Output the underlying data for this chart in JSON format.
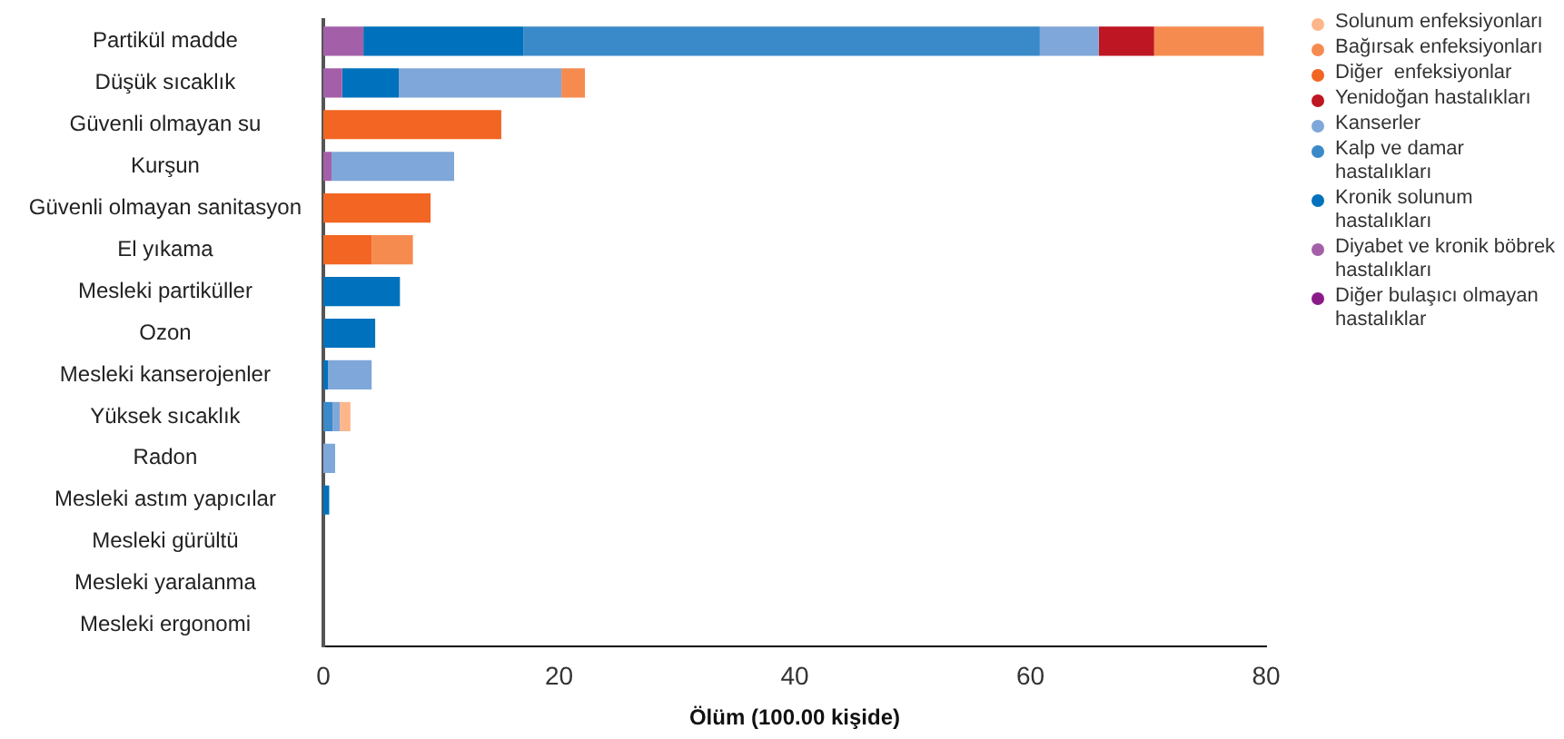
{
  "chart_data": {
    "type": "bar",
    "orientation": "horizontal",
    "stacked": true,
    "xlabel": "Ölüm (100.00 kişide)",
    "legend": "right",
    "categories": [
      "Partikül madde",
      "Düşük sıcaklık",
      "Güvenli olmayan su",
      "Kurşun",
      "Güvenli olmayan sanitasyon",
      "El yıkama",
      "Mesleki partiküller",
      "Ozon",
      "Mesleki kanserojenler",
      "Yüksek sıcaklık",
      "Radon",
      "Mesleki astım yapıcılar",
      "Mesleki gürültü",
      "Mesleki yaralanma",
      "Mesleki ergonomi"
    ],
    "xlim": [
      0,
      80
    ],
    "xticks": [
      0,
      20,
      40,
      60,
      80
    ],
    "series": [
      {
        "name": "Diğer bulaşıcı olmayan hastalıklar",
        "color": "#8b1a89",
        "values": [
          null,
          null,
          null,
          null,
          null,
          null,
          null,
          null,
          null,
          null,
          null,
          null,
          null,
          null,
          null
        ]
      },
      {
        "name": "Diyabet ve kronik böbrek hastalıkları",
        "color": "#a45fa9",
        "values": [
          3.4,
          1.6,
          null,
          0.7,
          null,
          null,
          null,
          null,
          null,
          null,
          null,
          null,
          null,
          null,
          null
        ]
      },
      {
        "name": "Kronik solunum hastalıkları",
        "color": "#0071bc",
        "values": [
          13.6,
          4.8,
          null,
          null,
          null,
          null,
          6.5,
          4.4,
          0.4,
          null,
          null,
          0.5,
          null,
          null,
          null
        ]
      },
      {
        "name": "Kalp ve damar hastalıkları",
        "color": "#3a89c9",
        "values": [
          43.8,
          null,
          null,
          null,
          null,
          null,
          null,
          null,
          null,
          0.8,
          null,
          null,
          null,
          null,
          null
        ]
      },
      {
        "name": "Kanserler",
        "color": "#7fa7d9",
        "values": [
          5.0,
          13.8,
          null,
          10.4,
          null,
          null,
          null,
          null,
          3.7,
          0.6,
          1.0,
          null,
          null,
          null,
          null
        ]
      },
      {
        "name": "Yenidoğan hastalıkları",
        "color": "#be1622",
        "values": [
          4.7,
          null,
          null,
          null,
          null,
          null,
          null,
          null,
          null,
          null,
          null,
          null,
          null,
          null,
          null
        ]
      },
      {
        "name": "Diğer  enfeksiyonlar",
        "color": "#f26522",
        "values": [
          null,
          null,
          15.1,
          null,
          9.1,
          4.1,
          null,
          null,
          null,
          null,
          null,
          null,
          null,
          null,
          null
        ]
      },
      {
        "name": "Bağırsak enfeksiyonları",
        "color": "#f68b50",
        "values": [
          9.3,
          2.0,
          null,
          null,
          null,
          3.5,
          null,
          null,
          null,
          null,
          null,
          null,
          null,
          null,
          null
        ]
      },
      {
        "name": "Solunum enfeksiyonları",
        "color": "#fdb68a",
        "values": [
          null,
          null,
          null,
          null,
          null,
          null,
          null,
          null,
          null,
          0.9,
          null,
          null,
          null,
          null,
          null
        ]
      }
    ]
  }
}
